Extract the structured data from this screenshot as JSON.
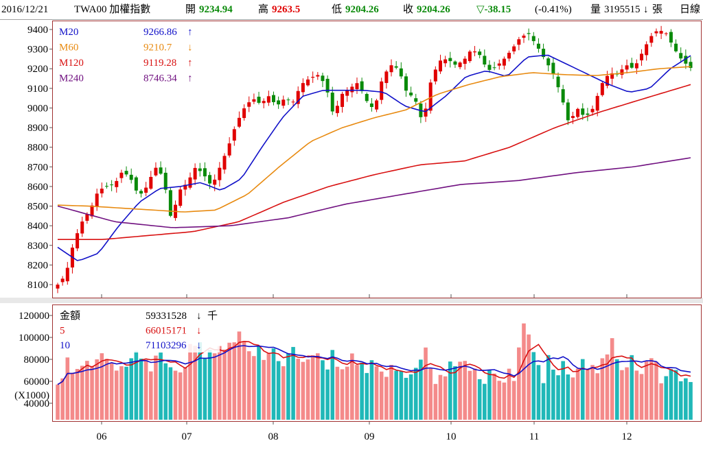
{
  "header": {
    "date": "2016/12/21",
    "symbol": "TWA00 加權指數",
    "open_label": "開",
    "open_value": "9234.94",
    "high_label": "高",
    "high_value": "9263.5",
    "low_label": "低",
    "low_value": "9204.26",
    "close_label": "收",
    "close_value": "9204.26",
    "change": "▽-38.15",
    "change_pct": "(-0.41%)",
    "volume_label": "量",
    "volume_value": "3195515",
    "volume_arrow": "↓",
    "volume_unit": "張",
    "period": "日線"
  },
  "colors": {
    "up": "#e00000",
    "down": "#0a8a0a",
    "ma20": "#1010c8",
    "ma60": "#e88a10",
    "ma120": "#d81010",
    "ma240": "#701080",
    "bar_up": "#f48a8a",
    "bar_down": "#20b8b8",
    "frame": "#a03030"
  },
  "price_legend": [
    {
      "name": "M20",
      "value": "9266.86",
      "arrow": "↑",
      "color": "#1010c8"
    },
    {
      "name": "M60",
      "value": "9210.7",
      "arrow": "↓",
      "color": "#e88a10"
    },
    {
      "name": "M120",
      "value": "9119.28",
      "arrow": "↑",
      "color": "#d81010"
    },
    {
      "name": "M240",
      "value": "8746.34",
      "arrow": "↑",
      "color": "#701080"
    }
  ],
  "volume_legend": [
    {
      "name": "金額",
      "value": "59331528",
      "arrow": "↓",
      "unit": "千",
      "color": "#000000"
    },
    {
      "name": "5",
      "value": "66015171",
      "arrow": "↓",
      "unit": "",
      "color": "#d81010"
    },
    {
      "name": "10",
      "value": "71103296",
      "arrow": "↓",
      "unit": "",
      "color": "#1010c8"
    }
  ],
  "chart_data": [
    {
      "type": "candlestick",
      "title": "TWA00 加權指數",
      "x_months": [
        "06",
        "07",
        "08",
        "09",
        "10",
        "11",
        "12"
      ],
      "ylim": [
        8050,
        9450
      ],
      "y_ticks": [
        8100,
        8200,
        8300,
        8400,
        8500,
        8600,
        8700,
        8800,
        8900,
        9000,
        9100,
        9200,
        9300,
        9400
      ],
      "close_path": [
        8100,
        8150,
        8320,
        8420,
        8480,
        8580,
        8600,
        8610,
        8680,
        8640,
        8550,
        8600,
        8700,
        8650,
        8430,
        8580,
        8620,
        8700,
        8660,
        8600,
        8700,
        8800,
        8920,
        9000,
        9050,
        9020,
        9060,
        9010,
        9050,
        9030,
        9120,
        9150,
        9170,
        9120,
        8960,
        9070,
        9100,
        9130,
        9040,
        8990,
        9150,
        9220,
        9200,
        9080,
        9050,
        8920,
        9140,
        9240,
        9250,
        9220,
        9240,
        9300,
        9270,
        9190,
        9210,
        9250,
        9300,
        9360,
        9380,
        9320,
        9250,
        9180,
        9070,
        8920,
        9000,
        8950,
        9000,
        9120,
        9180,
        9170,
        9220,
        9200,
        9280,
        9360,
        9400,
        9380,
        9300,
        9240,
        9204.26
      ],
      "ma_series": [
        {
          "name": "M20",
          "values": [
            8290,
            8220,
            8260,
            8400,
            8520,
            8590,
            8600,
            8620,
            8580,
            8640,
            8800,
            8950,
            9060,
            9090,
            9090,
            9090,
            9080,
            9010,
            8980,
            9060,
            9160,
            9190,
            9160,
            9260,
            9270,
            9220,
            9170,
            9120,
            9080,
            9100,
            9200,
            9266.86
          ]
        },
        {
          "name": "M60",
          "values": [
            8505,
            8500,
            8490,
            8480,
            8470,
            8480,
            8560,
            8700,
            8830,
            8900,
            8950,
            8990,
            9070,
            9120,
            9160,
            9180,
            9170,
            9165,
            9180,
            9200,
            9210.7
          ]
        },
        {
          "name": "M120",
          "values": [
            8330,
            8330,
            8350,
            8370,
            8420,
            8520,
            8600,
            8660,
            8710,
            8730,
            8800,
            8900,
            8980,
            9050,
            9119.28
          ]
        },
        {
          "name": "M240",
          "values": [
            8500,
            8420,
            8390,
            8400,
            8440,
            8510,
            8560,
            8610,
            8630,
            8670,
            8700,
            8746.34
          ]
        }
      ]
    },
    {
      "type": "bar",
      "title": "金額",
      "ylabel": "(X1000)",
      "ylim": [
        25000,
        125000
      ],
      "y_ticks": [
        40000,
        60000,
        80000,
        100000,
        120000
      ],
      "volume_path": [
        62000,
        76000,
        72000,
        80000,
        69000,
        85000,
        62000,
        85000,
        78000,
        70000,
        82000,
        68000,
        72000,
        82000,
        93000,
        80000,
        84000,
        98000,
        103000,
        88000,
        80000,
        82000,
        86000,
        80000,
        85000,
        74000,
        82000,
        75000,
        80000,
        78000,
        82000,
        73000,
        70000,
        74000,
        68000,
        70000,
        75000,
        84000,
        65000,
        76000,
        72000,
        68000,
        74000,
        65000,
        66000,
        62000,
        60000,
        120000,
        90000,
        68000,
        78000,
        73000,
        70000,
        82000,
        74000,
        72000,
        106000,
        72000,
        80000,
        70000,
        76000,
        68000,
        72000,
        65000,
        59331528
      ]
    }
  ]
}
